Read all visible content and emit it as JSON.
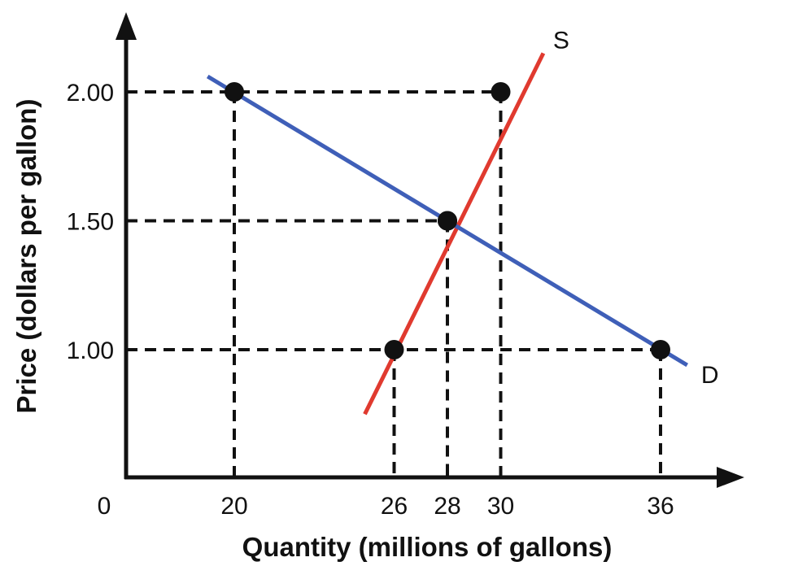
{
  "chart_data": {
    "type": "line",
    "xlabel": "Quantity (millions of gallons)",
    "ylabel": "Price (dollars per gallon)",
    "origin_label": "0",
    "xticks": [
      20,
      26,
      28,
      30,
      36
    ],
    "xtick_labels": [
      "20",
      "26",
      "28",
      "30",
      "36"
    ],
    "yticks": [
      1.0,
      1.5,
      2.0
    ],
    "ytick_labels": [
      "1.00",
      "1.50",
      "2.00"
    ],
    "series": [
      {
        "name": "S",
        "color": "#e03a2f",
        "line": [
          [
            24.9,
            0.75
          ],
          [
            31.6,
            2.15
          ]
        ],
        "points": [
          [
            26,
            1.0
          ],
          [
            28,
            1.5
          ],
          [
            30,
            2.0
          ]
        ]
      },
      {
        "name": "D",
        "color": "#3f5fb8",
        "line": [
          [
            19.0,
            2.06
          ],
          [
            37.0,
            0.94
          ]
        ],
        "points": [
          [
            20,
            2.0
          ],
          [
            28,
            1.5
          ],
          [
            36,
            1.0
          ]
        ]
      }
    ],
    "guides": [
      {
        "x": 20,
        "y": 2.0
      },
      {
        "x": 30,
        "y": 2.0
      },
      {
        "x": 28,
        "y": 1.5
      },
      {
        "x": 26,
        "y": 1.0
      },
      {
        "x": 36,
        "y": 1.0
      }
    ],
    "grid": false,
    "legend": "none"
  }
}
